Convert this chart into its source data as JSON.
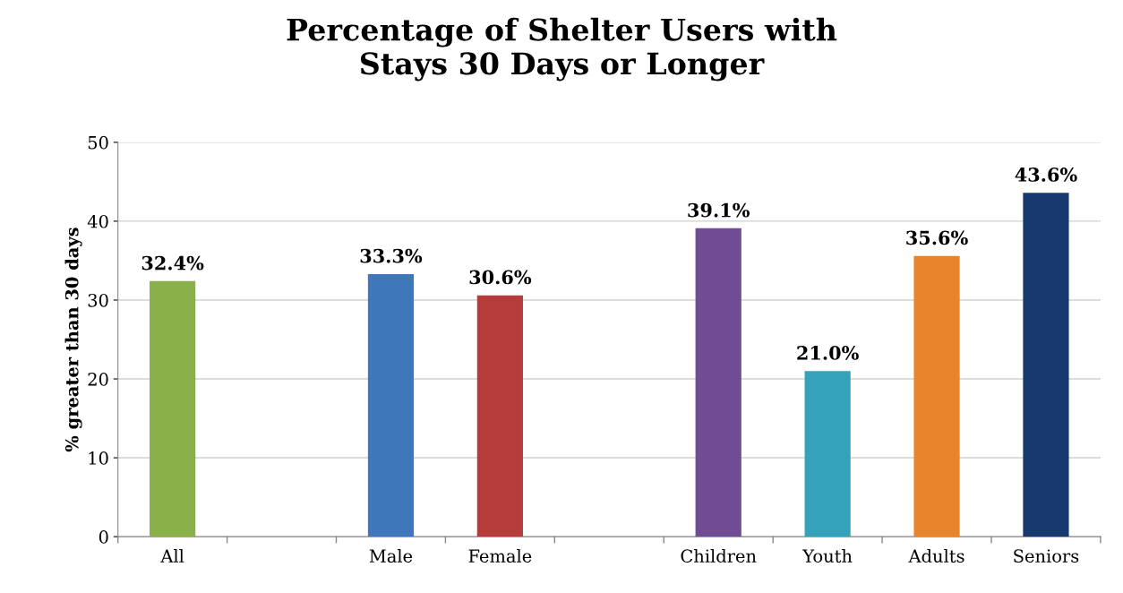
{
  "chart_data": {
    "type": "bar",
    "title": "Percentage of Shelter Users with\nStays 30 Days or Longer",
    "ylabel": "% greater than 30 days",
    "categories": [
      "All",
      null,
      "Male",
      "Female",
      null,
      "Children",
      "Youth",
      "Adults",
      "Seniors"
    ],
    "values": [
      32.4,
      null,
      33.3,
      30.6,
      null,
      39.1,
      21.0,
      35.6,
      43.6
    ],
    "value_labels": [
      "32.4%",
      null,
      "33.3%",
      "30.6%",
      null,
      "39.1%",
      "21.0%",
      "35.6%",
      "43.6%"
    ],
    "colors": [
      "#8ab04a",
      "#cccccc",
      "#3f78ba",
      "#b63c3c",
      "#cccccc",
      "#6f4c94",
      "#35a2bb",
      "#e8852c",
      "#18396e"
    ],
    "ylim": [
      0,
      50
    ],
    "yticks": [
      0,
      10,
      20,
      30,
      40,
      50
    ],
    "grid": "y"
  }
}
